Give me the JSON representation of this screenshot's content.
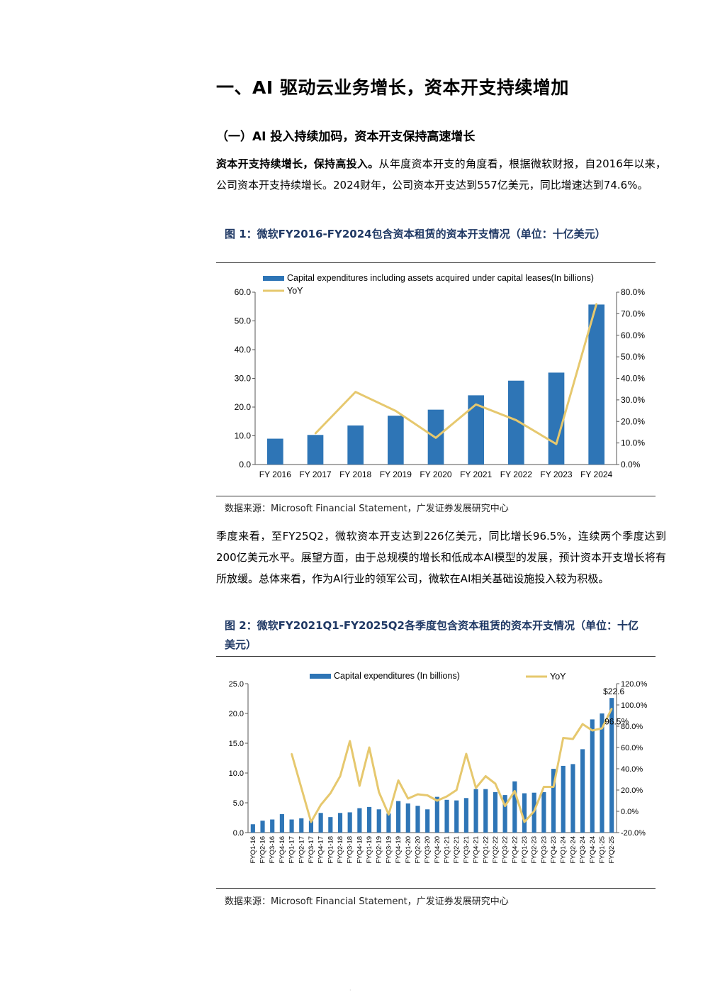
{
  "heading1": "一、AI 驱动云业务增长，资本开支持续增加",
  "heading2": "（一）AI 投入持续加码，资本开支保持高速增长",
  "para1": {
    "bold": "资本开支持续增长，保持高投入。",
    "text": "从年度资本开支的角度看，根据微软财报，自2016年以来，公司资本开支持续增长。2024财年，公司资本开支达到557亿美元，同比增速达到74.6%。"
  },
  "figure1": {
    "title": "图 1：微软FY2016-FY2024包含资本租赁的资本开支情况（单位：十亿美元）",
    "source": "数据来源：Microsoft Financial Statement，广发证券发展研究中心"
  },
  "para2": "季度来看，至FY25Q2，微软资本开支达到226亿美元，同比增长96.5%，连续两个季度达到200亿美元水平。展望方面，由于总规模的增长和低成本AI模型的发展，预计资本开支增长将有所放缓。总体来看，作为AI行业的领军公司，微软在AI相关基础设施投入较为积极。",
  "figure2": {
    "title": "图 2：微软FY2021Q1-FY2025Q2各季度包含资本租赁的资本开支情况（单位：十亿美元）",
    "source": "数据来源：Microsoft Financial Statement，广发证券发展研究中心"
  },
  "colors": {
    "bar": "#2e75b6",
    "line": "#e6c86e",
    "title": "#1f3864"
  },
  "chart_data": [
    {
      "type": "bar",
      "categories": [
        "FY 2016",
        "FY 2017",
        "FY 2018",
        "FY 2019",
        "FY 2020",
        "FY 2021",
        "FY 2022",
        "FY 2023",
        "FY 2024"
      ],
      "series": [
        {
          "name": "Capital expenditures including assets acquired under capital leases(In billions)",
          "type": "bar",
          "axis": "left",
          "values": [
            9.0,
            10.3,
            13.6,
            17.0,
            19.1,
            24.1,
            29.2,
            32.0,
            55.7
          ]
        },
        {
          "name": "YoY",
          "type": "line",
          "axis": "right",
          "values": [
            null,
            14.4,
            33.7,
            24.9,
            12.4,
            27.9,
            20.6,
            9.5,
            74.6
          ]
        }
      ],
      "ylim": [
        0,
        60
      ],
      "yticks": [
        "0.0",
        "10.0",
        "20.0",
        "30.0",
        "40.0",
        "50.0",
        "60.0"
      ],
      "y2lim": [
        0,
        80
      ],
      "y2ticks": [
        "0.0%",
        "10.0%",
        "20.0%",
        "30.0%",
        "40.0%",
        "50.0%",
        "60.0%",
        "70.0%",
        "80.0%"
      ],
      "legend": "top"
    },
    {
      "type": "bar",
      "categories": [
        "FYQ1-16",
        "FYQ2-16",
        "FYQ3-16",
        "FYQ4-16",
        "FYQ1-17",
        "FYQ2-17",
        "FYQ3-17",
        "FYQ4-17",
        "FYQ1-18",
        "FYQ2-18",
        "FYQ3-18",
        "FYQ4-18",
        "FYQ1-19",
        "FYQ2-19",
        "FYQ3-19",
        "FYQ4-19",
        "FYQ1-20",
        "FYQ2-20",
        "FYQ3-20",
        "FYQ4-20",
        "FYQ1-21",
        "FYQ2-21",
        "FYQ3-21",
        "FYQ4-21",
        "FYQ1-22",
        "FYQ2-22",
        "FYQ3-22",
        "FYQ4-22",
        "FYQ1-23",
        "FYQ2-23",
        "FYQ3-23",
        "FYQ4-23",
        "FYQ1-24",
        "FYQ2-24",
        "FYQ3-24",
        "FYQ4-24",
        "FYQ1-25",
        "FYQ2-25"
      ],
      "series": [
        {
          "name": "Capital expenditures (In billions)",
          "type": "bar",
          "axis": "left",
          "values": [
            1.4,
            2.0,
            2.2,
            3.1,
            2.2,
            2.4,
            2.0,
            3.3,
            2.6,
            3.3,
            3.4,
            4.1,
            4.3,
            3.9,
            3.2,
            5.3,
            4.9,
            4.5,
            3.9,
            6.0,
            5.5,
            5.4,
            5.8,
            7.3,
            7.3,
            6.8,
            6.3,
            8.6,
            6.6,
            6.7,
            6.8,
            10.7,
            11.2,
            11.5,
            14.0,
            19.0,
            20.0,
            22.6
          ]
        },
        {
          "name": "YoY",
          "type": "line",
          "axis": "right",
          "values": [
            null,
            null,
            null,
            null,
            54.0,
            22.0,
            -10.0,
            6.0,
            17.0,
            33.0,
            66.0,
            24.0,
            60.0,
            18.0,
            -3.0,
            29.0,
            12.0,
            16.0,
            15.0,
            10.0,
            14.0,
            20.0,
            54.0,
            22.0,
            33.0,
            26.0,
            5.0,
            19.0,
            -10.0,
            0.0,
            23.0,
            23.0,
            69.0,
            68.0,
            82.0,
            76.0,
            78.0,
            96.5
          ]
        }
      ],
      "annotations": [
        "$22.6",
        "96.5%"
      ],
      "ylim": [
        0,
        25
      ],
      "yticks": [
        "0.0",
        "5.0",
        "10.0",
        "15.0",
        "20.0",
        "25.0"
      ],
      "y2lim": [
        -20,
        120
      ],
      "y2ticks": [
        "-20.0%",
        "0.0%",
        "20.0%",
        "40.0%",
        "60.0%",
        "80.0%",
        "100.0%",
        "120.0%"
      ],
      "legend": "top"
    }
  ]
}
